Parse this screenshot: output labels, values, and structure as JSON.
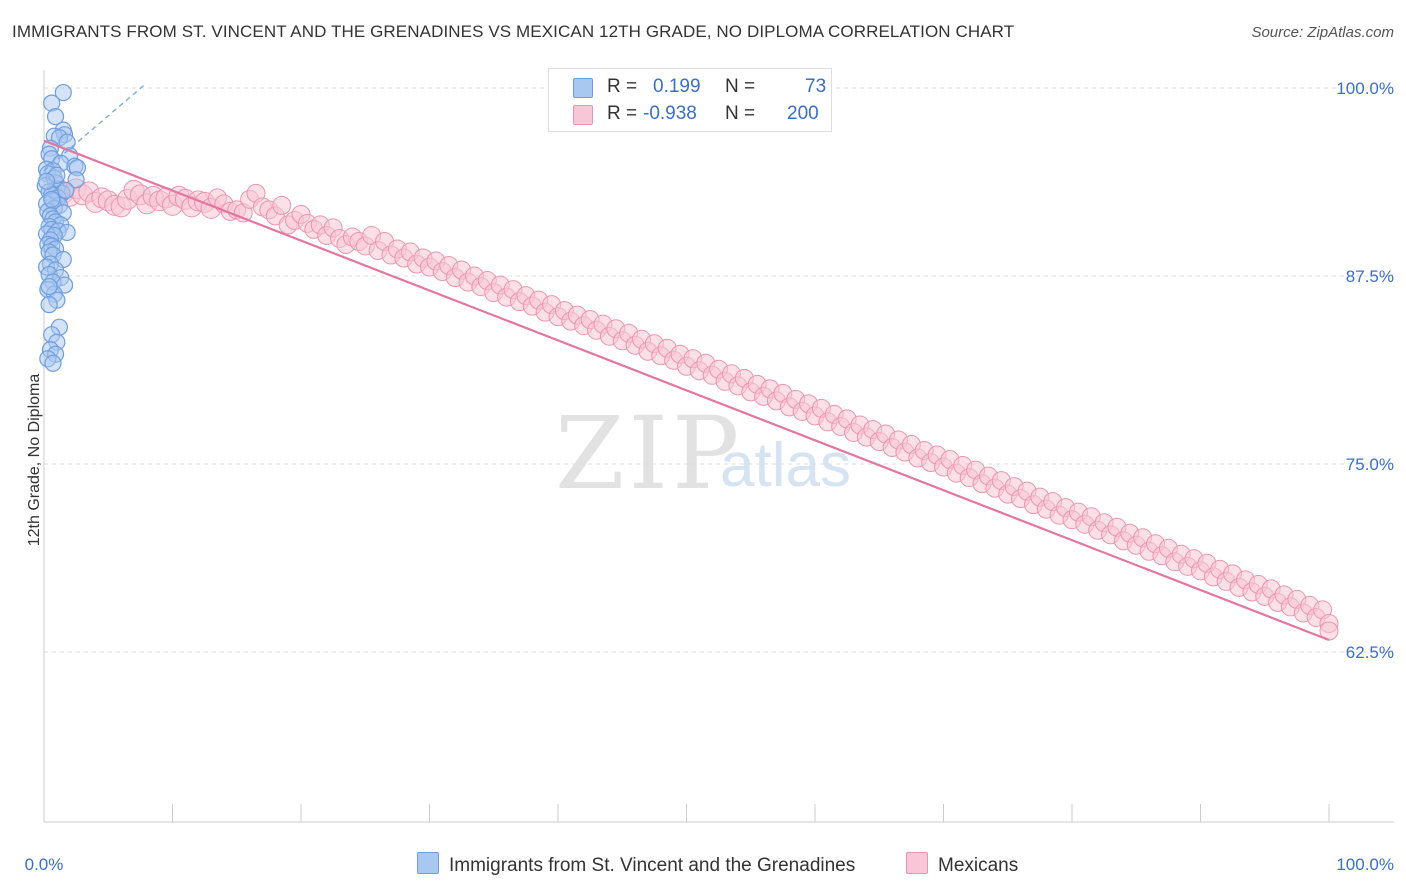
{
  "title": "IMMIGRANTS FROM ST. VINCENT AND THE GRENADINES VS MEXICAN 12TH GRADE, NO DIPLOMA CORRELATION CHART",
  "source": "Source: ZipAtlas.com",
  "watermark": {
    "main": "ZIP",
    "sub": "atlas"
  },
  "legend": {
    "r_label": "R =",
    "n_label": "N =",
    "rows": [
      {
        "r": "0.199",
        "n": "73",
        "color": "#a9c8f0",
        "stroke": "#6f9ee0"
      },
      {
        "r": "-0.938",
        "n": "200",
        "color": "#f8c6d6",
        "stroke": "#ec94b2"
      }
    ]
  },
  "chart_data": {
    "type": "scatter",
    "title": "IMMIGRANTS FROM ST. VINCENT AND THE GRENADINES VS MEXICAN 12TH GRADE, NO DIPLOMA CORRELATION CHART",
    "xlabel": "",
    "ylabel": "12th Grade, No Diploma",
    "xlim": [
      0,
      100
    ],
    "ylim": [
      51.2,
      101.2
    ],
    "x_tick_labels": [
      "0.0%",
      "100.0%"
    ],
    "y_ticks": [
      {
        "value": 100.0,
        "label": "100.0%"
      },
      {
        "value": 87.5,
        "label": "87.5%"
      },
      {
        "value": 75.0,
        "label": "75.0%"
      },
      {
        "value": 62.5,
        "label": "62.5%"
      }
    ],
    "grid": true,
    "legend_position": "bottom-center",
    "series": [
      {
        "name": "Immigrants from St. Vincent and the Grenadines",
        "color": "#6f9ee0",
        "fill": "#a9c8f0",
        "r": 0.199,
        "n": 73,
        "trend_dashed": {
          "x": [
            0,
            7.8
          ],
          "y": [
            94.5,
            100.2
          ]
        },
        "points": [
          [
            1.5,
            99.7
          ],
          [
            0.6,
            99.0
          ],
          [
            0.9,
            98.1
          ],
          [
            1.5,
            97.2
          ],
          [
            1.6,
            96.9
          ],
          [
            0.8,
            96.8
          ],
          [
            1.2,
            96.7
          ],
          [
            1.8,
            96.4
          ],
          [
            0.5,
            96.0
          ],
          [
            0.4,
            95.6
          ],
          [
            2.0,
            95.5
          ],
          [
            0.6,
            95.3
          ],
          [
            1.3,
            95.0
          ],
          [
            2.4,
            94.8
          ],
          [
            2.6,
            94.7
          ],
          [
            0.2,
            94.6
          ],
          [
            0.7,
            94.5
          ],
          [
            0.3,
            94.3
          ],
          [
            0.8,
            94.0
          ],
          [
            2.5,
            93.9
          ],
          [
            0.9,
            93.7
          ],
          [
            0.1,
            93.5
          ],
          [
            1.0,
            93.3
          ],
          [
            0.4,
            93.1
          ],
          [
            1.4,
            93.0
          ],
          [
            0.6,
            92.9
          ],
          [
            1.1,
            92.7
          ],
          [
            0.7,
            92.5
          ],
          [
            0.2,
            92.3
          ],
          [
            1.2,
            92.2
          ],
          [
            0.8,
            92.0
          ],
          [
            0.3,
            91.8
          ],
          [
            1.5,
            91.7
          ],
          [
            0.5,
            91.5
          ],
          [
            0.7,
            91.3
          ],
          [
            0.9,
            91.1
          ],
          [
            1.3,
            90.9
          ],
          [
            0.4,
            90.8
          ],
          [
            0.6,
            90.6
          ],
          [
            1.1,
            90.5
          ],
          [
            1.8,
            90.4
          ],
          [
            0.2,
            90.3
          ],
          [
            0.8,
            90.2
          ],
          [
            0.5,
            89.9
          ],
          [
            0.3,
            89.6
          ],
          [
            0.6,
            89.5
          ],
          [
            0.9,
            89.3
          ],
          [
            0.4,
            89.1
          ],
          [
            0.7,
            88.9
          ],
          [
            1.5,
            88.6
          ],
          [
            0.5,
            88.3
          ],
          [
            0.2,
            88.1
          ],
          [
            0.9,
            87.9
          ],
          [
            0.4,
            87.6
          ],
          [
            1.3,
            87.4
          ],
          [
            0.7,
            87.1
          ],
          [
            1.6,
            86.9
          ],
          [
            0.3,
            86.6
          ],
          [
            0.8,
            86.3
          ],
          [
            1.0,
            85.9
          ],
          [
            0.4,
            85.6
          ],
          [
            1.2,
            84.1
          ],
          [
            0.6,
            83.6
          ],
          [
            1.0,
            83.1
          ],
          [
            0.5,
            82.6
          ],
          [
            0.9,
            82.3
          ],
          [
            0.3,
            82.0
          ],
          [
            0.7,
            81.7
          ],
          [
            0.6,
            92.6
          ],
          [
            1.0,
            94.2
          ],
          [
            0.2,
            93.8
          ],
          [
            1.7,
            93.2
          ],
          [
            0.4,
            86.8
          ]
        ]
      },
      {
        "name": "Mexicans",
        "color": "#ec94b2",
        "fill": "#f8c6d6",
        "r": -0.938,
        "n": 200,
        "trend": {
          "x": [
            0,
            100
          ],
          "y": [
            96.5,
            63.3
          ]
        },
        "points": [
          [
            1,
            93.4
          ],
          [
            1.5,
            93.0
          ],
          [
            2,
            92.8
          ],
          [
            2.5,
            93.3
          ],
          [
            3,
            92.9
          ],
          [
            3.5,
            93.1
          ],
          [
            4,
            92.4
          ],
          [
            4.5,
            92.7
          ],
          [
            5,
            92.5
          ],
          [
            5.5,
            92.2
          ],
          [
            6,
            92.1
          ],
          [
            6.5,
            92.6
          ],
          [
            7,
            93.2
          ],
          [
            7.5,
            92.9
          ],
          [
            8,
            92.3
          ],
          [
            8.5,
            92.8
          ],
          [
            9,
            92.5
          ],
          [
            9.5,
            92.7
          ],
          [
            10,
            92.2
          ],
          [
            10.5,
            92.8
          ],
          [
            11,
            92.6
          ],
          [
            11.5,
            92.1
          ],
          [
            12,
            92.5
          ],
          [
            12.5,
            92.4
          ],
          [
            13,
            92.0
          ],
          [
            13.5,
            92.7
          ],
          [
            14,
            92.3
          ],
          [
            14.5,
            91.8
          ],
          [
            15,
            91.9
          ],
          [
            15.5,
            91.7
          ],
          [
            16,
            92.6
          ],
          [
            16.5,
            93.0
          ],
          [
            17,
            92.1
          ],
          [
            17.5,
            91.9
          ],
          [
            18,
            91.5
          ],
          [
            18.5,
            92.2
          ],
          [
            19,
            90.9
          ],
          [
            19.5,
            91.2
          ],
          [
            20,
            91.6
          ],
          [
            20.5,
            91.0
          ],
          [
            21,
            90.6
          ],
          [
            21.5,
            90.9
          ],
          [
            22,
            90.2
          ],
          [
            22.5,
            90.7
          ],
          [
            23,
            90.0
          ],
          [
            23.5,
            89.6
          ],
          [
            24,
            90.1
          ],
          [
            24.5,
            89.8
          ],
          [
            25,
            89.5
          ],
          [
            25.5,
            90.2
          ],
          [
            26,
            89.2
          ],
          [
            26.5,
            89.8
          ],
          [
            27,
            88.9
          ],
          [
            27.5,
            89.3
          ],
          [
            28,
            88.7
          ],
          [
            28.5,
            89.1
          ],
          [
            29,
            88.3
          ],
          [
            29.5,
            88.7
          ],
          [
            30,
            88.1
          ],
          [
            30.5,
            88.5
          ],
          [
            31,
            87.8
          ],
          [
            31.5,
            88.2
          ],
          [
            32,
            87.4
          ],
          [
            32.5,
            87.9
          ],
          [
            33,
            87.1
          ],
          [
            33.5,
            87.5
          ],
          [
            34,
            86.8
          ],
          [
            34.5,
            87.2
          ],
          [
            35,
            86.4
          ],
          [
            35.5,
            86.9
          ],
          [
            36,
            86.1
          ],
          [
            36.5,
            86.6
          ],
          [
            37,
            85.8
          ],
          [
            37.5,
            86.2
          ],
          [
            38,
            85.5
          ],
          [
            38.5,
            85.9
          ],
          [
            39,
            85.1
          ],
          [
            39.5,
            85.6
          ],
          [
            40,
            84.8
          ],
          [
            40.5,
            85.2
          ],
          [
            41,
            84.5
          ],
          [
            41.5,
            84.9
          ],
          [
            42,
            84.2
          ],
          [
            42.5,
            84.6
          ],
          [
            43,
            83.9
          ],
          [
            43.5,
            84.3
          ],
          [
            44,
            83.5
          ],
          [
            44.5,
            84.0
          ],
          [
            45,
            83.2
          ],
          [
            45.5,
            83.7
          ],
          [
            46,
            82.9
          ],
          [
            46.5,
            83.3
          ],
          [
            47,
            82.5
          ],
          [
            47.5,
            83.0
          ],
          [
            48,
            82.2
          ],
          [
            48.5,
            82.7
          ],
          [
            49,
            81.9
          ],
          [
            49.5,
            82.3
          ],
          [
            50,
            81.5
          ],
          [
            50.5,
            82.0
          ],
          [
            51,
            81.2
          ],
          [
            51.5,
            81.7
          ],
          [
            52,
            80.9
          ],
          [
            52.5,
            81.3
          ],
          [
            53,
            80.5
          ],
          [
            53.5,
            81.0
          ],
          [
            54,
            80.2
          ],
          [
            54.5,
            80.7
          ],
          [
            55,
            79.8
          ],
          [
            55.5,
            80.3
          ],
          [
            56,
            79.5
          ],
          [
            56.5,
            80.0
          ],
          [
            57,
            79.2
          ],
          [
            57.5,
            79.7
          ],
          [
            58,
            78.8
          ],
          [
            58.5,
            79.3
          ],
          [
            59,
            78.5
          ],
          [
            59.5,
            79.0
          ],
          [
            60,
            78.2
          ],
          [
            60.5,
            78.7
          ],
          [
            61,
            77.8
          ],
          [
            61.5,
            78.3
          ],
          [
            62,
            77.5
          ],
          [
            62.5,
            78.0
          ],
          [
            63,
            77.1
          ],
          [
            63.5,
            77.6
          ],
          [
            64,
            76.8
          ],
          [
            64.5,
            77.3
          ],
          [
            65,
            76.5
          ],
          [
            65.5,
            77.0
          ],
          [
            66,
            76.1
          ],
          [
            66.5,
            76.6
          ],
          [
            67,
            75.8
          ],
          [
            67.5,
            76.3
          ],
          [
            68,
            75.4
          ],
          [
            68.5,
            75.9
          ],
          [
            69,
            75.1
          ],
          [
            69.5,
            75.6
          ],
          [
            70,
            74.8
          ],
          [
            70.5,
            75.3
          ],
          [
            71,
            74.4
          ],
          [
            71.5,
            74.9
          ],
          [
            72,
            74.1
          ],
          [
            72.5,
            74.6
          ],
          [
            73,
            73.7
          ],
          [
            73.5,
            74.2
          ],
          [
            74,
            73.4
          ],
          [
            74.5,
            73.9
          ],
          [
            75,
            73.0
          ],
          [
            75.5,
            73.5
          ],
          [
            76,
            72.7
          ],
          [
            76.5,
            73.2
          ],
          [
            77,
            72.3
          ],
          [
            77.5,
            72.8
          ],
          [
            78,
            72.0
          ],
          [
            78.5,
            72.5
          ],
          [
            79,
            71.6
          ],
          [
            79.5,
            72.1
          ],
          [
            80,
            71.3
          ],
          [
            80.5,
            71.8
          ],
          [
            81,
            71.0
          ],
          [
            81.5,
            71.5
          ],
          [
            82,
            70.6
          ],
          [
            82.5,
            71.1
          ],
          [
            83,
            70.3
          ],
          [
            83.5,
            70.8
          ],
          [
            84,
            69.9
          ],
          [
            84.5,
            70.4
          ],
          [
            85,
            69.6
          ],
          [
            85.5,
            70.1
          ],
          [
            86,
            69.2
          ],
          [
            86.5,
            69.7
          ],
          [
            87,
            68.9
          ],
          [
            87.5,
            69.4
          ],
          [
            88,
            68.5
          ],
          [
            88.5,
            69.0
          ],
          [
            89,
            68.2
          ],
          [
            89.5,
            68.7
          ],
          [
            90,
            67.9
          ],
          [
            90.5,
            68.4
          ],
          [
            91,
            67.5
          ],
          [
            91.5,
            68.0
          ],
          [
            92,
            67.2
          ],
          [
            92.5,
            67.7
          ],
          [
            93,
            66.8
          ],
          [
            93.5,
            67.3
          ],
          [
            94,
            66.5
          ],
          [
            94.5,
            67.0
          ],
          [
            95,
            66.2
          ],
          [
            95.5,
            66.7
          ],
          [
            96,
            65.8
          ],
          [
            96.5,
            66.3
          ],
          [
            97,
            65.5
          ],
          [
            97.5,
            66.0
          ],
          [
            98,
            65.1
          ],
          [
            98.5,
            65.6
          ],
          [
            99,
            64.8
          ],
          [
            99.5,
            65.3
          ],
          [
            100,
            64.4
          ],
          [
            100,
            63.9
          ]
        ]
      }
    ]
  },
  "bottom_legend": [
    {
      "label": "Immigrants from St. Vincent and the Grenadines",
      "color": "#a9c8f0",
      "stroke": "#6f9ee0"
    },
    {
      "label": "Mexicans",
      "color": "#f8c6d6",
      "stroke": "#ec94b2"
    }
  ]
}
